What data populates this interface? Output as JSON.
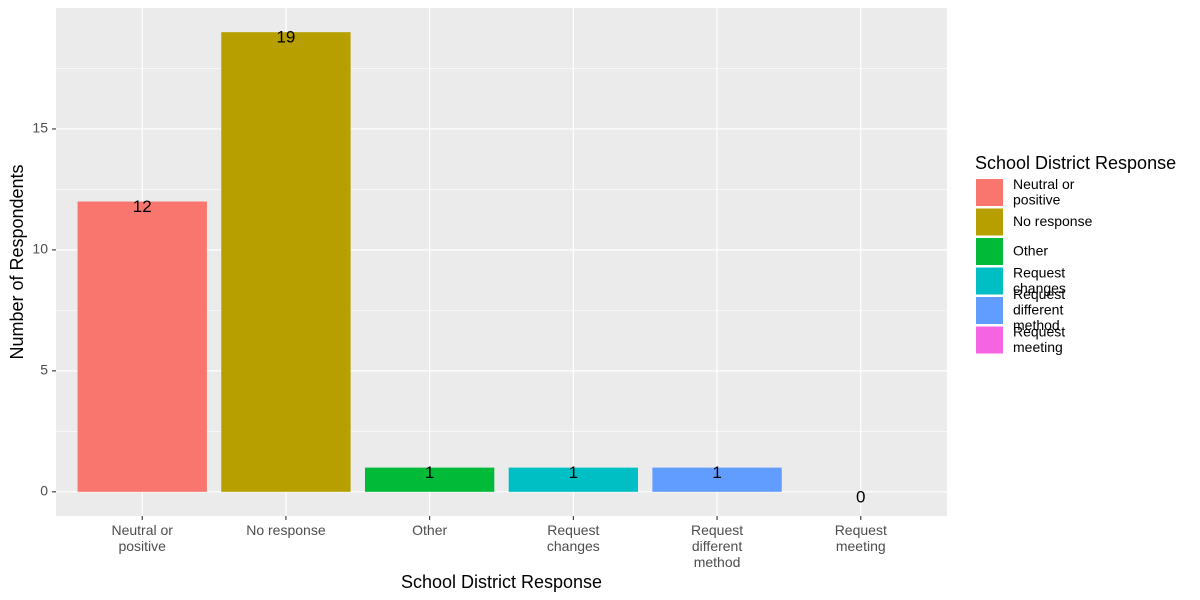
{
  "chart_data": {
    "type": "bar",
    "categories": [
      "Neutral or positive",
      "No response",
      "Other",
      "Request changes",
      "Request different method",
      "Request meeting"
    ],
    "category_label_lines": [
      [
        "Neutral or",
        "positive"
      ],
      [
        "No response"
      ],
      [
        "Other"
      ],
      [
        "Request",
        "changes"
      ],
      [
        "Request",
        "different",
        "method"
      ],
      [
        "Request",
        "meeting"
      ]
    ],
    "values": [
      12,
      19,
      1,
      1,
      1,
      0
    ],
    "data_labels": [
      "12",
      "19",
      "1",
      "1",
      "1",
      "0"
    ],
    "colors": [
      "#F8766D",
      "#B79F00",
      "#00BA38",
      "#00BFC4",
      "#619CFF",
      "#F564E3"
    ],
    "title": "",
    "xlabel": "School District Response",
    "ylabel": "Number of Respondents",
    "ylim": [
      -1,
      20
    ],
    "yticks": [
      0,
      5,
      10,
      15
    ],
    "ytick_labels": [
      "0",
      "5",
      "10",
      "15"
    ],
    "y_minor_gridlines": [
      2.5,
      7.5,
      12.5,
      17.5
    ],
    "grid": true,
    "panel_background": "#EBEBEB",
    "gridline_color": "#FFFFFF",
    "legend": {
      "title": "School District Response",
      "position": "right",
      "entries": [
        {
          "label": "Neutral or positive",
          "lines": [
            "Neutral or",
            "positive"
          ],
          "color": "#F8766D"
        },
        {
          "label": "No response",
          "lines": [
            "No response"
          ],
          "color": "#B79F00"
        },
        {
          "label": "Other",
          "lines": [
            "Other"
          ],
          "color": "#00BA38"
        },
        {
          "label": "Request changes",
          "lines": [
            "Request",
            "changes"
          ],
          "color": "#00BFC4"
        },
        {
          "label": "Request different method",
          "lines": [
            "Request",
            "different",
            "method"
          ],
          "color": "#619CFF"
        },
        {
          "label": "Request meeting",
          "lines": [
            "Request",
            "meeting"
          ],
          "color": "#F564E3"
        }
      ]
    }
  }
}
